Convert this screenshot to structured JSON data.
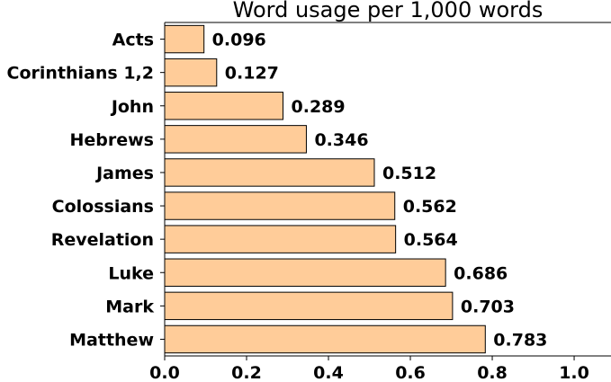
{
  "chart_data": {
    "type": "bar",
    "orientation": "horizontal",
    "title": "Word usage per 1,000 words",
    "xlabel": "",
    "ylabel": "",
    "categories": [
      "Acts",
      "Corinthians 1,2",
      "John",
      "Hebrews",
      "James",
      "Colossians",
      "Revelation",
      "Luke",
      "Mark",
      "Matthew"
    ],
    "values": [
      0.096,
      0.127,
      0.289,
      0.346,
      0.512,
      0.562,
      0.564,
      0.686,
      0.703,
      0.783
    ],
    "value_labels": [
      "0.096",
      "0.127",
      "0.289",
      "0.346",
      "0.512",
      "0.562",
      "0.564",
      "0.686",
      "0.703",
      "0.783"
    ],
    "xlim": [
      0,
      1.09
    ],
    "xticks": [
      0.0,
      0.2,
      0.4,
      0.6,
      0.8,
      1.0
    ],
    "xtick_labels": [
      "0.0",
      "0.2",
      "0.4",
      "0.6",
      "0.8",
      "1.0"
    ],
    "grid": false,
    "legend": "none",
    "colors": {
      "bar_fill": "#ffcc99",
      "bar_edge": "#000000"
    }
  }
}
